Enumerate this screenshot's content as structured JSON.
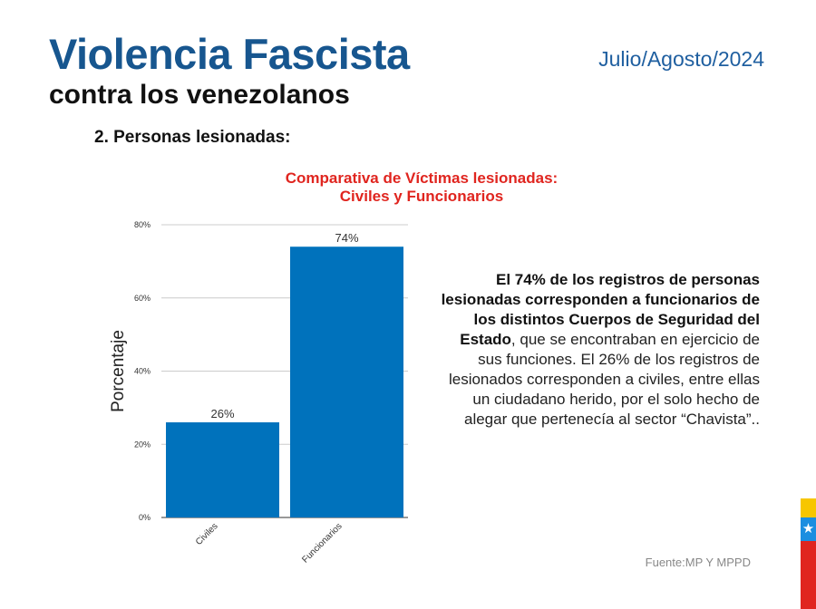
{
  "header": {
    "title": "Violencia Fascista",
    "subtitle": "contra los venezolanos",
    "date": "Julio/Agosto/2024"
  },
  "section": {
    "label": "2. Personas lesionadas:"
  },
  "chart_data": {
    "type": "bar",
    "title_line1": "Comparativa de Víctimas lesionadas:",
    "title_line2": "Civiles y Funcionarios",
    "categories": [
      "Civiles",
      "Funcionarios"
    ],
    "values": [
      26,
      74
    ],
    "value_labels": [
      "26%",
      "74%"
    ],
    "ylabel": "Porcentaje",
    "xlabel": "",
    "ylim": [
      0,
      80
    ],
    "y_ticks": [
      0,
      20,
      40,
      60,
      80
    ],
    "y_tick_labels": [
      "0%",
      "20%",
      "40%",
      "60%",
      "80%"
    ],
    "grid": true,
    "bar_color": "#0072bc"
  },
  "description": {
    "bold_text": "El 74% de los registros de personas lesionadas corresponden a funcionarios de los distintos Cuerpos de Seguridad del Estado",
    "normal_text": ", que se encontraban en ejercicio de sus funciones. El 26% de los registros de lesionados corresponden a civiles, entre ellas un ciudadano herido, por el solo hecho de alegar que pertenecía al sector “Chavista”.."
  },
  "source": "Fuente:MP Y MPPD",
  "decoration": {
    "flag_colors": [
      "#f7c600",
      "#1b8ee0",
      "#e0251f"
    ],
    "flag_icon": "star-icon"
  }
}
